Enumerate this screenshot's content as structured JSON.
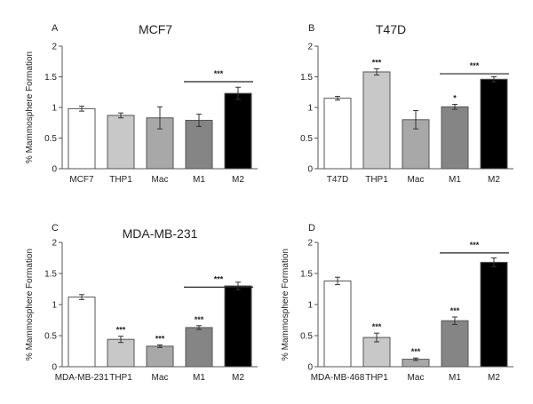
{
  "colors": {
    "bar_fills": [
      "#ffffff",
      "#c8c8c8",
      "#a8a8a8",
      "#858585",
      "#000000"
    ],
    "bar_stroke": "#555555",
    "axis": "#555555"
  },
  "chart_data": [
    {
      "type": "bar",
      "panel": "A",
      "title": "MCF7",
      "ylabel": "% Mammosphere Formation",
      "ylim": [
        0,
        2
      ],
      "yticks": [
        "0",
        "0.5",
        "1",
        "1.5",
        "2"
      ],
      "categories": [
        "MCF7",
        "THP1",
        "Mac",
        "M1",
        "M2"
      ],
      "values": [
        0.98,
        0.87,
        0.83,
        0.79,
        1.23
      ],
      "errors": [
        0.04,
        0.04,
        0.18,
        0.1,
        0.1
      ],
      "stars": [
        "",
        "",
        "",
        "",
        ""
      ],
      "brackets": [
        {
          "from": 3,
          "to": 4,
          "y": 1.42,
          "label": "***"
        }
      ]
    },
    {
      "type": "bar",
      "panel": "B",
      "title": "T47D",
      "ylabel": "",
      "ylim": [
        0,
        2
      ],
      "yticks": [
        "0",
        "0.5",
        "1",
        "1.5",
        "2"
      ],
      "categories": [
        "T47D",
        "THP1",
        "Mac",
        "M1",
        "M2"
      ],
      "values": [
        1.15,
        1.58,
        0.8,
        1.01,
        1.46
      ],
      "errors": [
        0.03,
        0.05,
        0.15,
        0.04,
        0.04
      ],
      "stars": [
        "",
        "***",
        "",
        "*",
        ""
      ],
      "brackets": [
        {
          "from": 3,
          "to": 4,
          "y": 1.55,
          "label": "***"
        }
      ]
    },
    {
      "type": "bar",
      "panel": "C",
      "title": "MDA-MB-231",
      "ylabel": "% Mammosphere Formation",
      "ylim": [
        0,
        2
      ],
      "yticks": [
        "0",
        "0.5",
        "1",
        "1.5",
        "2"
      ],
      "categories": [
        "MDA-MB-231",
        "THP1",
        "Mac",
        "M1",
        "M2"
      ],
      "values": [
        1.12,
        0.44,
        0.33,
        0.63,
        1.3
      ],
      "errors": [
        0.04,
        0.05,
        0.02,
        0.03,
        0.06
      ],
      "stars": [
        "",
        "***",
        "***",
        "***",
        ""
      ],
      "brackets": [
        {
          "from": 3,
          "to": 4,
          "y": 1.28,
          "label": "***"
        }
      ]
    },
    {
      "type": "bar",
      "panel": "D",
      "title": "",
      "ylabel": "% Mammosphere Formation",
      "ylim": [
        0,
        2
      ],
      "yticks": [
        "0",
        "0.5",
        "1",
        "1.5",
        "2"
      ],
      "categories": [
        "MDA-MB-468",
        "THP1",
        "Mac",
        "M1",
        "M2"
      ],
      "values": [
        1.38,
        0.47,
        0.12,
        0.74,
        1.68
      ],
      "errors": [
        0.06,
        0.07,
        0.02,
        0.06,
        0.07
      ],
      "stars": [
        "",
        "***",
        "***",
        "***",
        ""
      ],
      "brackets": [
        {
          "from": 3,
          "to": 4,
          "y": 1.83,
          "label": "***"
        }
      ]
    }
  ]
}
